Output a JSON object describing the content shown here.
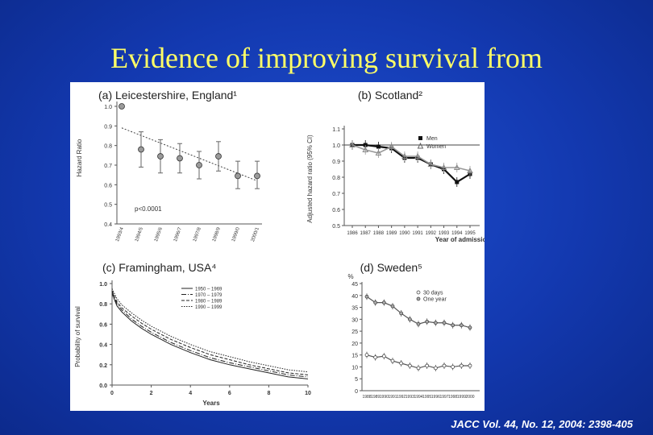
{
  "slide": {
    "title": "Evidence of improving survival from",
    "citation": "JACC Vol. 44, No. 12, 2004: 2398-405"
  },
  "chart_data": [
    {
      "panel": "a",
      "type": "scatter",
      "title": "(a) Leicestershire, England¹",
      "xlabel": "",
      "ylabel": "Hazard Ratio",
      "categories": [
        "1993/4",
        "1994/5",
        "1995/6",
        "1996/7",
        "1997/8",
        "1998/9",
        "1999/0",
        "2000/1"
      ],
      "values": [
        1.0,
        0.78,
        0.745,
        0.735,
        0.7,
        0.745,
        0.645,
        0.645
      ],
      "error_low": [
        1.0,
        0.69,
        0.66,
        0.66,
        0.63,
        0.67,
        0.58,
        0.58
      ],
      "error_high": [
        1.0,
        0.87,
        0.83,
        0.81,
        0.77,
        0.82,
        0.72,
        0.72
      ],
      "trend": [
        0.89,
        0.62
      ],
      "annotation": "p<0.0001",
      "yticks": [
        "0.4",
        "0.5",
        "0.6",
        "0.7",
        "0.8",
        "0.9",
        "1.0"
      ],
      "ylim": [
        0.4,
        1.0
      ]
    },
    {
      "panel": "b",
      "type": "line",
      "title": "(b) Scotland²",
      "xlabel": "Year of admission",
      "ylabel": "Adjusted hazard ratio (95% CI)",
      "x": [
        "1986",
        "1987",
        "1988",
        "1989",
        "1990",
        "1991",
        "1992",
        "1993",
        "1994",
        "1995"
      ],
      "series": [
        {
          "name": "Men",
          "values": [
            1.0,
            1.0,
            0.99,
            0.98,
            0.92,
            0.92,
            0.88,
            0.85,
            0.77,
            0.82
          ],
          "color": "#111111"
        },
        {
          "name": "Women",
          "values": [
            1.0,
            0.97,
            0.95,
            0.99,
            0.93,
            0.93,
            0.88,
            0.86,
            0.86,
            0.84
          ],
          "color": "#999999"
        }
      ],
      "reference_line": 1.0,
      "yticks": [
        "0.5",
        "0.6",
        "0.7",
        "0.8",
        "0.9",
        "1.0",
        "1.1"
      ],
      "ylim": [
        0.5,
        1.1
      ]
    },
    {
      "panel": "c",
      "type": "line",
      "title": "(c) Framingham, USA⁴",
      "xlabel": "Years",
      "ylabel": "Probability of survival",
      "xticks": [
        "0",
        "2",
        "4",
        "6",
        "8",
        "10"
      ],
      "yticks": [
        "0.0",
        "0.2",
        "0.4",
        "0.6",
        "0.8",
        "1.0"
      ],
      "xlim": [
        0,
        10
      ],
      "ylim": [
        0.0,
        1.0
      ],
      "x": [
        0,
        0.25,
        0.5,
        1,
        1.5,
        2,
        3,
        4,
        5,
        6,
        7,
        8,
        9,
        10
      ],
      "series": [
        {
          "name": "1950 – 1969",
          "values": [
            0.9,
            0.78,
            0.72,
            0.63,
            0.56,
            0.5,
            0.4,
            0.32,
            0.25,
            0.2,
            0.16,
            0.12,
            0.08,
            0.06
          ]
        },
        {
          "name": "1970 – 1979",
          "values": [
            0.92,
            0.8,
            0.74,
            0.65,
            0.58,
            0.52,
            0.42,
            0.34,
            0.27,
            0.22,
            0.18,
            0.14,
            0.1,
            0.08
          ]
        },
        {
          "name": "1980 – 1989",
          "values": [
            0.93,
            0.82,
            0.76,
            0.68,
            0.61,
            0.55,
            0.45,
            0.37,
            0.3,
            0.25,
            0.2,
            0.16,
            0.12,
            0.1
          ]
        },
        {
          "name": "1990 – 1999",
          "values": [
            0.95,
            0.85,
            0.79,
            0.71,
            0.64,
            0.58,
            0.48,
            0.4,
            0.33,
            0.28,
            0.23,
            0.19,
            0.15,
            0.13
          ]
        }
      ]
    },
    {
      "panel": "d",
      "type": "line",
      "title": "(d) Sweden⁵",
      "xlabel": "",
      "ylabel": "%",
      "x": [
        "1988",
        "1989",
        "1990",
        "1991",
        "1992",
        "1993",
        "1994",
        "1995",
        "1996",
        "1997",
        "1998",
        "1999",
        "2000"
      ],
      "series": [
        {
          "name": "30 days",
          "values": [
            15,
            14,
            14.5,
            12.5,
            11.5,
            10.5,
            9.5,
            10.5,
            9.5,
            10.5,
            10,
            10.5,
            10.5
          ]
        },
        {
          "name": "One year",
          "values": [
            39.5,
            37,
            37,
            35.5,
            32.5,
            30,
            28,
            29,
            28.5,
            28.5,
            27.5,
            27.5,
            26.5
          ]
        }
      ],
      "yticks": [
        "0",
        "5",
        "10",
        "15",
        "20",
        "25",
        "30",
        "35",
        "40",
        "45"
      ],
      "ylim": [
        0,
        45
      ]
    }
  ]
}
